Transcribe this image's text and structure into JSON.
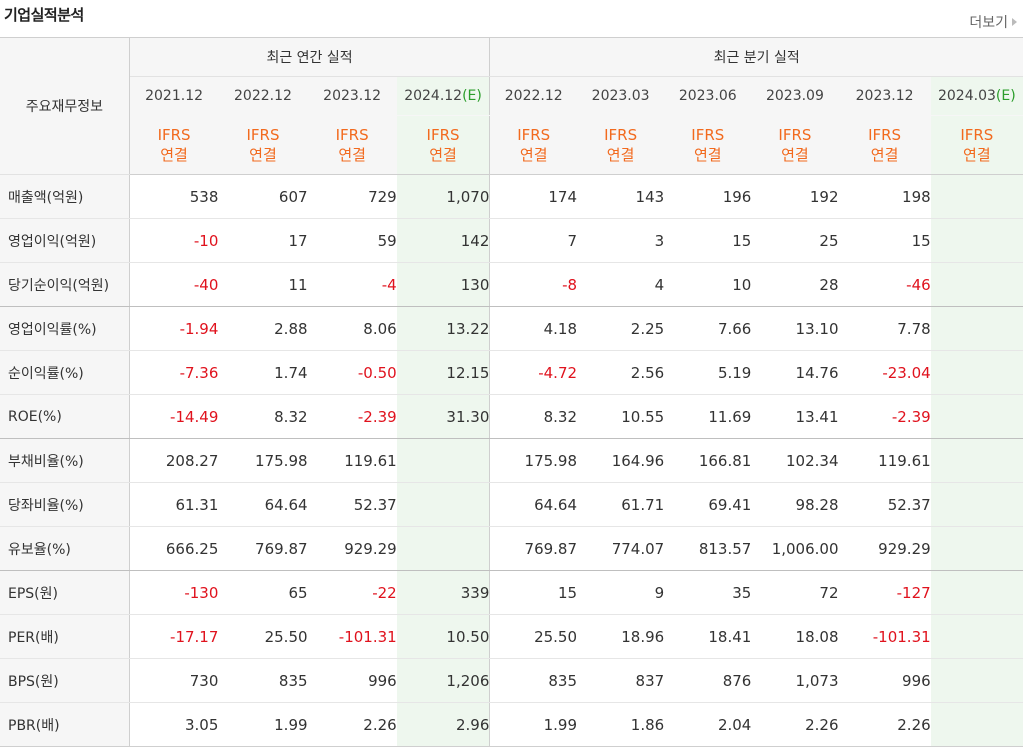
{
  "title": "기업실적분석",
  "more_label": "더보기",
  "header": {
    "row_label": "주요재무정보",
    "annual_group": "최근 연간 실적",
    "quarter_group": "최근 분기 실적",
    "periods": [
      {
        "date": "2021.12",
        "estimate": false
      },
      {
        "date": "2022.12",
        "estimate": false
      },
      {
        "date": "2023.12",
        "estimate": false
      },
      {
        "date": "2024.12",
        "estimate": true
      },
      {
        "date": "2022.12",
        "estimate": false
      },
      {
        "date": "2023.03",
        "estimate": false
      },
      {
        "date": "2023.06",
        "estimate": false
      },
      {
        "date": "2023.09",
        "estimate": false
      },
      {
        "date": "2023.12",
        "estimate": false
      },
      {
        "date": "2024.03",
        "estimate": true
      }
    ],
    "estimate_mark": "(E)",
    "standard_top": "IFRS",
    "standard_bottom": "연결"
  },
  "rows": [
    {
      "label": "매출액(억원)",
      "values": [
        "538",
        "607",
        "729",
        "1,070",
        "174",
        "143",
        "196",
        "192",
        "198",
        ""
      ]
    },
    {
      "label": "영업이익(억원)",
      "values": [
        "-10",
        "17",
        "59",
        "142",
        "7",
        "3",
        "15",
        "25",
        "15",
        ""
      ]
    },
    {
      "label": "당기순이익(억원)",
      "values": [
        "-40",
        "11",
        "-4",
        "130",
        "-8",
        "4",
        "10",
        "28",
        "-46",
        ""
      ]
    },
    {
      "label": "영업이익률(%)",
      "values": [
        "-1.94",
        "2.88",
        "8.06",
        "13.22",
        "4.18",
        "2.25",
        "7.66",
        "13.10",
        "7.78",
        ""
      ]
    },
    {
      "label": "순이익률(%)",
      "values": [
        "-7.36",
        "1.74",
        "-0.50",
        "12.15",
        "-4.72",
        "2.56",
        "5.19",
        "14.76",
        "-23.04",
        ""
      ]
    },
    {
      "label": "ROE(%)",
      "values": [
        "-14.49",
        "8.32",
        "-2.39",
        "31.30",
        "8.32",
        "10.55",
        "11.69",
        "13.41",
        "-2.39",
        ""
      ]
    },
    {
      "label": "부채비율(%)",
      "values": [
        "208.27",
        "175.98",
        "119.61",
        "",
        "175.98",
        "164.96",
        "166.81",
        "102.34",
        "119.61",
        ""
      ]
    },
    {
      "label": "당좌비율(%)",
      "values": [
        "61.31",
        "64.64",
        "52.37",
        "",
        "64.64",
        "61.71",
        "69.41",
        "98.28",
        "52.37",
        ""
      ]
    },
    {
      "label": "유보율(%)",
      "values": [
        "666.25",
        "769.87",
        "929.29",
        "",
        "769.87",
        "774.07",
        "813.57",
        "1,006.00",
        "929.29",
        ""
      ]
    },
    {
      "label": "EPS(원)",
      "values": [
        "-130",
        "65",
        "-22",
        "339",
        "15",
        "9",
        "35",
        "72",
        "-127",
        ""
      ]
    },
    {
      "label": "PER(배)",
      "values": [
        "-17.17",
        "25.50",
        "-101.31",
        "10.50",
        "25.50",
        "18.96",
        "18.41",
        "18.08",
        "-101.31",
        ""
      ]
    },
    {
      "label": "BPS(원)",
      "values": [
        "730",
        "835",
        "996",
        "1,206",
        "835",
        "837",
        "876",
        "1,073",
        "996",
        ""
      ]
    },
    {
      "label": "PBR(배)",
      "values": [
        "3.05",
        "1.99",
        "2.26",
        "2.96",
        "1.99",
        "1.86",
        "2.04",
        "2.26",
        "2.26",
        ""
      ]
    }
  ],
  "colors": {
    "negative": "#e0121d",
    "standard": "#f26a1e",
    "estimate_bg": "#eef7ee",
    "estimate_mark": "#2a9d2a"
  }
}
